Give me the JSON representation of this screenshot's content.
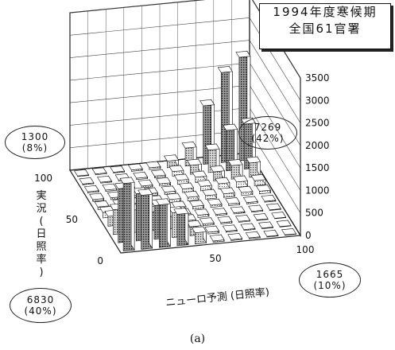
{
  "title": {
    "line1": "1994年度寒候期",
    "line2": "全国61官署"
  },
  "callouts": [
    {
      "id": "top-left",
      "count": "1300",
      "pct": "(8%)"
    },
    {
      "id": "center",
      "count": "7269",
      "pct": "(42%)"
    },
    {
      "id": "bottom-right",
      "count": "1665",
      "pct": "(10%)"
    },
    {
      "id": "bottom-left",
      "count": "6830",
      "pct": "(40%)"
    }
  ],
  "axes": {
    "left_label_chars": [
      "実",
      "況",
      "(",
      "日",
      "照",
      "率",
      ")"
    ],
    "bottom_label": "ニューロ予測 (日照率)",
    "left_ticks": [
      "100",
      "50",
      "0"
    ],
    "bottom_ticks": [
      "50",
      "100"
    ],
    "z_ticks": [
      "3500",
      "3000",
      "2500",
      "2000",
      "1500",
      "1000",
      "500",
      "0"
    ]
  },
  "caption": "(a)",
  "chart_data": {
    "type": "bar3d",
    "x_label": "ニューロ予測 (日照率)",
    "y_label": "実況 (日照率)",
    "x_range": [
      0,
      100
    ],
    "y_range": [
      0,
      100
    ],
    "z_range": [
      0,
      3500
    ],
    "x_bins": [
      10,
      20,
      30,
      40,
      50,
      60,
      70,
      80,
      90,
      100
    ],
    "y_bins": [
      10,
      20,
      30,
      40,
      50,
      60,
      70,
      80,
      90,
      100
    ],
    "counts": [
      [
        1500,
        1200,
        950,
        700,
        250,
        30,
        20,
        20,
        15,
        10
      ],
      [
        1200,
        1050,
        750,
        550,
        200,
        40,
        25,
        20,
        15,
        10
      ],
      [
        550,
        500,
        420,
        280,
        150,
        40,
        30,
        20,
        15,
        10
      ],
      [
        220,
        200,
        180,
        150,
        100,
        50,
        30,
        25,
        20,
        15
      ],
      [
        120,
        110,
        100,
        90,
        80,
        60,
        50,
        40,
        30,
        20
      ],
      [
        60,
        60,
        60,
        60,
        70,
        80,
        80,
        80,
        70,
        60
      ],
      [
        40,
        40,
        40,
        50,
        50,
        80,
        100,
        120,
        120,
        110
      ],
      [
        30,
        30,
        30,
        40,
        50,
        90,
        120,
        200,
        300,
        320
      ],
      [
        20,
        20,
        30,
        30,
        40,
        100,
        200,
        500,
        900,
        1000
      ],
      [
        15,
        20,
        20,
        30,
        40,
        150,
        400,
        1300,
        2000,
        2300
      ]
    ],
    "regions": [
      {
        "count": "1300",
        "pct": "(8%)"
      },
      {
        "count": "7269",
        "pct": "(42%)"
      },
      {
        "count": "1665",
        "pct": "(10%)"
      },
      {
        "count": "6830",
        "pct": "(40%)"
      }
    ]
  }
}
